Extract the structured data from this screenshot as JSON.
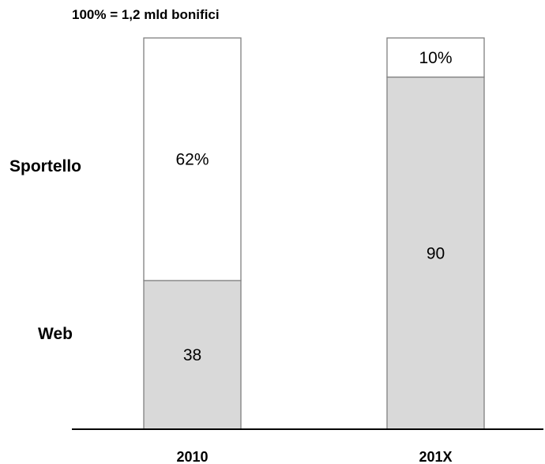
{
  "chart_data": {
    "type": "bar",
    "stacked": true,
    "percent_scale": true,
    "subtitle": "100% = 1,2 mld bonifici",
    "categories": [
      "2010",
      "201X"
    ],
    "series": [
      {
        "name": "Web",
        "values": [
          38,
          90
        ],
        "labels": [
          "38",
          "90"
        ],
        "color": "#d9d9d9"
      },
      {
        "name": "Sportello",
        "values": [
          62,
          10
        ],
        "labels": [
          "62%",
          "10%"
        ],
        "color": "#ffffff"
      }
    ],
    "ylim": [
      0,
      100
    ],
    "grid": false,
    "legend": "left",
    "border_color": "#808080",
    "axis_color": "#000000"
  }
}
